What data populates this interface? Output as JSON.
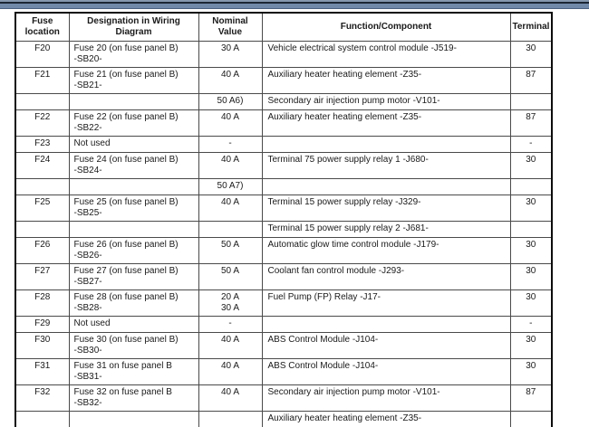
{
  "colors": {
    "strip_light_slate": "#8598ae",
    "strip_dark_navy": "#1b2533",
    "strip_steel_blue": "#7089a9",
    "strip_edge": "#4a627e",
    "table_border": "#0d0d0d",
    "cell_border": "#4a4a4a",
    "text": "#1a1a1a",
    "background": "#ffffff"
  },
  "table": {
    "headers": [
      "Fuse\nlocation",
      "Designation in Wiring\nDiagram",
      "Nominal\nValue",
      "Function/Component",
      "Terminal"
    ],
    "rows": [
      {
        "fuse": "F20",
        "designation": "Fuse 20 (on fuse panel B)\n-SB20-",
        "nominal": "30 A",
        "function": "Vehicle electrical system control module -J519-",
        "terminal": "30"
      },
      {
        "fuse": "F21",
        "designation": "Fuse 21 (on fuse panel B)\n-SB21-",
        "nominal": "40 A",
        "function": "Auxiliary heater heating element -Z35-",
        "terminal": "87"
      },
      {
        "fuse": "",
        "designation": "",
        "nominal": "50 A6)",
        "function": "Secondary air injection pump motor -V101-",
        "terminal": ""
      },
      {
        "fuse": "F22",
        "designation": "Fuse 22 (on fuse panel B)\n-SB22-",
        "nominal": "40 A",
        "function": "Auxiliary heater heating element -Z35-",
        "terminal": "87"
      },
      {
        "fuse": "F23",
        "designation": "Not used",
        "nominal": "-",
        "function": "",
        "terminal": "-"
      },
      {
        "fuse": "F24",
        "designation": "Fuse 24 (on fuse panel B)\n-SB24-",
        "nominal": "40 A",
        "function": "Terminal 75 power supply relay 1 -J680-",
        "terminal": "30"
      },
      {
        "fuse": "",
        "designation": "",
        "nominal": "50 A7)",
        "function": "",
        "terminal": ""
      },
      {
        "fuse": "F25",
        "designation": "Fuse 25 (on fuse panel B)\n-SB25-",
        "nominal": "40 A",
        "function": "Terminal 15 power supply relay -J329-",
        "terminal": "30"
      },
      {
        "fuse": "",
        "designation": "",
        "nominal": "",
        "function": "Terminal 15 power supply relay 2 -J681-",
        "terminal": ""
      },
      {
        "fuse": "F26",
        "designation": "Fuse 26 (on fuse panel B)\n-SB26-",
        "nominal": "50 A",
        "function": "Automatic glow time control module -J179-",
        "terminal": "30"
      },
      {
        "fuse": "F27",
        "designation": "Fuse 27 (on fuse panel B)\n-SB27-",
        "nominal": "50 A",
        "function": "Coolant fan control module -J293-",
        "terminal": "30"
      },
      {
        "fuse": "F28",
        "designation": "Fuse 28 (on fuse panel B)\n-SB28-",
        "nominal": "20 A\n30 A",
        "function": "Fuel Pump (FP) Relay -J17-",
        "terminal": "30"
      },
      {
        "fuse": "F29",
        "designation": "Not used",
        "nominal": "-",
        "function": "",
        "terminal": "-"
      },
      {
        "fuse": "F30",
        "designation": "Fuse 30 (on fuse panel B)\n-SB30-",
        "nominal": "40 A",
        "function": "ABS Control Module -J104-",
        "terminal": "30"
      },
      {
        "fuse": "F31",
        "designation": "Fuse 31 on fuse panel B\n-SB31-",
        "nominal": "40 A",
        "function": "ABS Control Module -J104-",
        "terminal": "30"
      },
      {
        "fuse": "F32",
        "designation": "Fuse 32 on fuse panel B\n-SB32-",
        "nominal": "40 A",
        "function": "Secondary air injection pump motor -V101-",
        "terminal": "87"
      },
      {
        "fuse": "",
        "designation": "",
        "nominal": "",
        "function": "Auxiliary heater heating element -Z35-",
        "terminal": ""
      }
    ]
  }
}
